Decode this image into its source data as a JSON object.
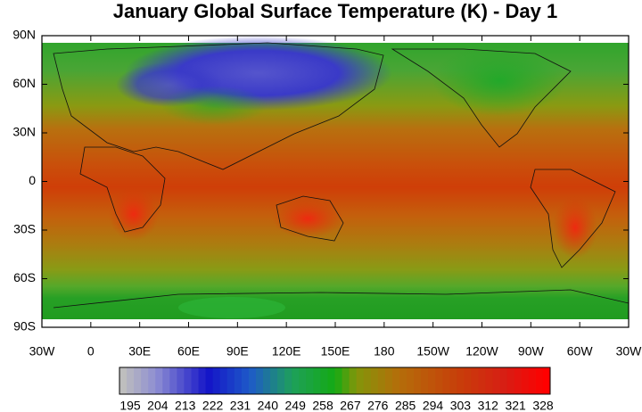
{
  "title": "January Global Surface Temperature (K) - Day 1",
  "map": {
    "xlim": [
      -30,
      330
    ],
    "ylim": [
      -90,
      90
    ],
    "xticks": [
      {
        "value": -30,
        "label": "30W"
      },
      0,
      {
        "value": 30,
        "label": "30E"
      },
      {
        "value": 60,
        "label": "60E"
      },
      {
        "value": 90,
        "label": "90E"
      },
      {
        "value": 120,
        "label": "120E"
      },
      {
        "value": 150,
        "label": "150E"
      },
      180,
      {
        "value": 210,
        "label": "150W"
      },
      {
        "value": 240,
        "label": "120W"
      },
      {
        "value": 270,
        "label": "90W"
      },
      {
        "value": 300,
        "label": "60W"
      },
      {
        "value": 330,
        "label": "30W"
      }
    ],
    "yticks": [
      {
        "value": 90,
        "label": "90N"
      },
      {
        "value": 60,
        "label": "60N"
      },
      {
        "value": 30,
        "label": "30N"
      },
      0,
      {
        "value": -30,
        "label": "30S"
      },
      {
        "value": -60,
        "label": "60S"
      },
      {
        "value": -90,
        "label": "90S"
      }
    ]
  },
  "colorbar": {
    "labels": [
      195,
      204,
      213,
      222,
      231,
      240,
      249,
      258,
      267,
      276,
      285,
      294,
      303,
      312,
      321,
      328
    ]
  }
}
